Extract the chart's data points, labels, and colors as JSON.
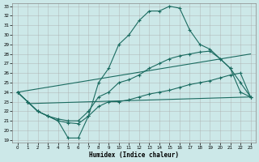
{
  "xlabel": "Humidex (Indice chaleur)",
  "bg_color": "#cce8e8",
  "line_color": "#1a6b60",
  "grid_color": "#b0d0d0",
  "xlim": [
    0,
    23
  ],
  "ylim": [
    19,
    33
  ],
  "xtick_labels": [
    "0",
    "1",
    "2",
    "3",
    "4",
    "5",
    "6",
    "7",
    "8",
    "9",
    "10",
    "11",
    "12",
    "13",
    "14",
    "15",
    "16",
    "17",
    "18",
    "19",
    "20",
    "21",
    "22",
    "23"
  ],
  "xticks": [
    0,
    1,
    2,
    3,
    4,
    5,
    6,
    7,
    8,
    9,
    10,
    11,
    12,
    13,
    14,
    15,
    16,
    17,
    18,
    19,
    20,
    21,
    22,
    23
  ],
  "yticks": [
    19,
    20,
    21,
    22,
    23,
    24,
    25,
    26,
    27,
    28,
    29,
    30,
    31,
    32,
    33
  ],
  "curve_top_x": [
    0,
    1,
    2,
    3,
    4,
    5,
    6,
    7,
    8,
    9,
    10,
    11,
    12,
    13,
    14,
    15,
    16,
    17,
    18,
    19,
    20,
    21,
    22,
    23
  ],
  "curve_top_y": [
    24,
    23,
    22,
    21.5,
    21,
    19.2,
    19.2,
    21.5,
    25,
    26.5,
    29,
    30,
    31.5,
    32.5,
    32.5,
    33,
    32.8,
    30.5,
    29,
    28.5,
    27.5,
    26.5,
    24,
    23.5
  ],
  "curve_mid_x": [
    0,
    1,
    2,
    3,
    4,
    5,
    6,
    7,
    8,
    9,
    10,
    11,
    12,
    13,
    14,
    15,
    16,
    17,
    18,
    19,
    20,
    21,
    22,
    23
  ],
  "curve_mid_y": [
    24,
    23,
    22,
    21.5,
    21.2,
    21,
    21,
    22,
    23.5,
    24,
    25,
    25.3,
    25.8,
    26.5,
    27,
    27.5,
    27.8,
    28,
    28.2,
    28.3,
    27.5,
    26.5,
    25,
    23.5
  ],
  "curve_bot_x": [
    0,
    1,
    2,
    3,
    4,
    5,
    6,
    7,
    8,
    9,
    10,
    11,
    12,
    13,
    14,
    15,
    16,
    17,
    18,
    19,
    20,
    21,
    22,
    23
  ],
  "curve_bot_y": [
    24,
    23,
    22,
    21.5,
    21,
    20.8,
    20.7,
    21.5,
    22.5,
    23,
    23,
    23.2,
    23.5,
    23.8,
    24,
    24.2,
    24.5,
    24.8,
    25,
    25.2,
    25.5,
    25.8,
    26,
    23.5
  ],
  "line1_x": [
    0,
    23
  ],
  "line1_y": [
    24.0,
    28.0
  ],
  "line2_x": [
    1,
    23
  ],
  "line2_y": [
    22.8,
    23.5
  ]
}
